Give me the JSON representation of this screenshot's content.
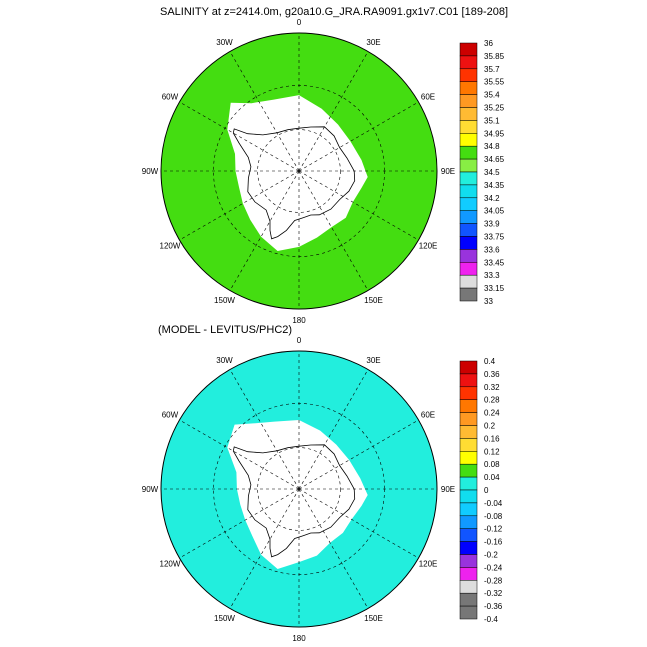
{
  "titles": {
    "top": "SALINITY at z=2414.0m, g20a10.G_JRA.RA9091.gx1v7.C01 [189-208]",
    "bottom": "(MODEL - LEVITUS/PHC2)"
  },
  "lon_labels": [
    "0",
    "30E",
    "60E",
    "90E",
    "120E",
    "150E",
    "180",
    "150W",
    "120W",
    "90W",
    "60W",
    "30W"
  ],
  "colors": {
    "land": "#ffffff",
    "green_field": "#44dd11",
    "cyan_field": "#22eedd",
    "contour": "#000000"
  },
  "legends": [
    {
      "name": "salinity",
      "labels": [
        "36",
        "35.85",
        "35.7",
        "35.55",
        "35.4",
        "35.25",
        "35.1",
        "34.95",
        "34.8",
        "34.65",
        "34.5",
        "34.35",
        "34.2",
        "34.05",
        "33.9",
        "33.75",
        "33.6",
        "33.45",
        "33.3",
        "33.15",
        "33"
      ],
      "colors": [
        "#cc0000",
        "#ee1111",
        "#ff3300",
        "#ff7700",
        "#ff9922",
        "#ffbb33",
        "#ffdd33",
        "#ffff00",
        "#44dd11",
        "#88ee44",
        "#22eedd",
        "#11ddee",
        "#11ccff",
        "#1199ff",
        "#1155ff",
        "#0000ff",
        "#9933dd",
        "#ee22ee",
        "#dddddd",
        "#777777"
      ]
    },
    {
      "name": "difference",
      "labels": [
        "0.4",
        "0.36",
        "0.32",
        "0.28",
        "0.24",
        "0.2",
        "0.16",
        "0.12",
        "0.08",
        "0.04",
        "0",
        "-0.04",
        "-0.08",
        "-0.12",
        "-0.16",
        "-0.2",
        "-0.24",
        "-0.28",
        "-0.32",
        "-0.36",
        "-0.4"
      ],
      "colors": [
        "#cc0000",
        "#ee1111",
        "#ff3300",
        "#ff7700",
        "#ff9922",
        "#ffbb33",
        "#ffdd33",
        "#ffff00",
        "#44dd11",
        "#22eedd",
        "#11ddee",
        "#11ccff",
        "#1199ff",
        "#1155ff",
        "#0000ff",
        "#9933dd",
        "#ee22ee",
        "#dddddd",
        "#777777",
        "#777777"
      ]
    }
  ]
}
